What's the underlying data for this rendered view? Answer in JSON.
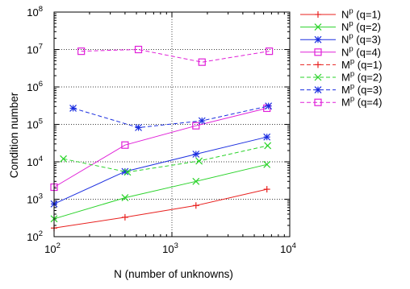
{
  "chart_data": {
    "type": "line",
    "title": "",
    "xlabel": "N (number of unknowns)",
    "ylabel": "Condition number",
    "xscale": "log",
    "yscale": "log",
    "xlim": [
      100,
      10000
    ],
    "ylim": [
      100,
      100000000
    ],
    "x_ticks": [
      {
        "value": 100,
        "base": "10",
        "exp": "2"
      },
      {
        "value": 1000,
        "base": "10",
        "exp": "3"
      },
      {
        "value": 10000,
        "base": "10",
        "exp": "4"
      }
    ],
    "y_ticks": [
      {
        "value": 100,
        "base": "10",
        "exp": "2"
      },
      {
        "value": 1000,
        "base": "10",
        "exp": "3"
      },
      {
        "value": 10000,
        "base": "10",
        "exp": "4"
      },
      {
        "value": 100000,
        "base": "10",
        "exp": "5"
      },
      {
        "value": 1000000,
        "base": "10",
        "exp": "6"
      },
      {
        "value": 10000000,
        "base": "10",
        "exp": "7"
      },
      {
        "value": 100000000,
        "base": "10",
        "exp": "8"
      }
    ],
    "grid": true,
    "legend_position": "outside-right",
    "series": [
      {
        "name": "Np (q=1)",
        "sym": "N",
        "sup": "p",
        "q": "(q=1)",
        "color": "#e8201e",
        "dash": "solid",
        "marker": "plus",
        "x": [
          100,
          400,
          1600,
          6400
        ],
        "y": [
          170,
          330,
          680,
          1850
        ]
      },
      {
        "name": "Np (q=2)",
        "sym": "N",
        "sup": "p",
        "q": "(q=2)",
        "color": "#2ad32a",
        "dash": "solid",
        "marker": "x",
        "x": [
          100,
          400,
          1600,
          6400
        ],
        "y": [
          300,
          1100,
          3000,
          8500
        ]
      },
      {
        "name": "Np (q=3)",
        "sym": "N",
        "sup": "p",
        "q": "(q=3)",
        "color": "#1b2ee0",
        "dash": "solid",
        "marker": "star",
        "x": [
          100,
          400,
          1600,
          6400
        ],
        "y": [
          750,
          5500,
          16000,
          46000
        ]
      },
      {
        "name": "Np (q=4)",
        "sym": "N",
        "sup": "p",
        "q": "(q=4)",
        "color": "#e020d8",
        "dash": "solid",
        "marker": "square",
        "x": [
          100,
          400,
          1600,
          6400
        ],
        "y": [
          2100,
          28000,
          92000,
          270000
        ]
      },
      {
        "name": "Mp (q=1)",
        "sym": "M",
        "sup": "p",
        "q": "(q=1)",
        "color": "#e8201e",
        "dash": "dashed",
        "marker": "plus",
        "x": [],
        "y": []
      },
      {
        "name": "Mp (q=2)",
        "sym": "M",
        "sup": "p",
        "q": "(q=2)",
        "color": "#2ad32a",
        "dash": "dashed",
        "marker": "x",
        "x": [
          120,
          420,
          1700,
          6500
        ],
        "y": [
          12000,
          5300,
          10500,
          27000
        ]
      },
      {
        "name": "Mp (q=3)",
        "sym": "M",
        "sup": "p",
        "q": "(q=3)",
        "color": "#1b2ee0",
        "dash": "dashed",
        "marker": "star",
        "x": [
          145,
          520,
          1800,
          6600
        ],
        "y": [
          270000,
          82000,
          125000,
          310000
        ]
      },
      {
        "name": "Mp (q=4)",
        "sym": "M",
        "sup": "p",
        "q": "(q=4)",
        "color": "#e020d8",
        "dash": "dashed",
        "marker": "square",
        "x": [
          170,
          520,
          1800,
          6700
        ],
        "y": [
          9000000,
          10000000,
          4600000,
          9000000
        ]
      }
    ]
  }
}
